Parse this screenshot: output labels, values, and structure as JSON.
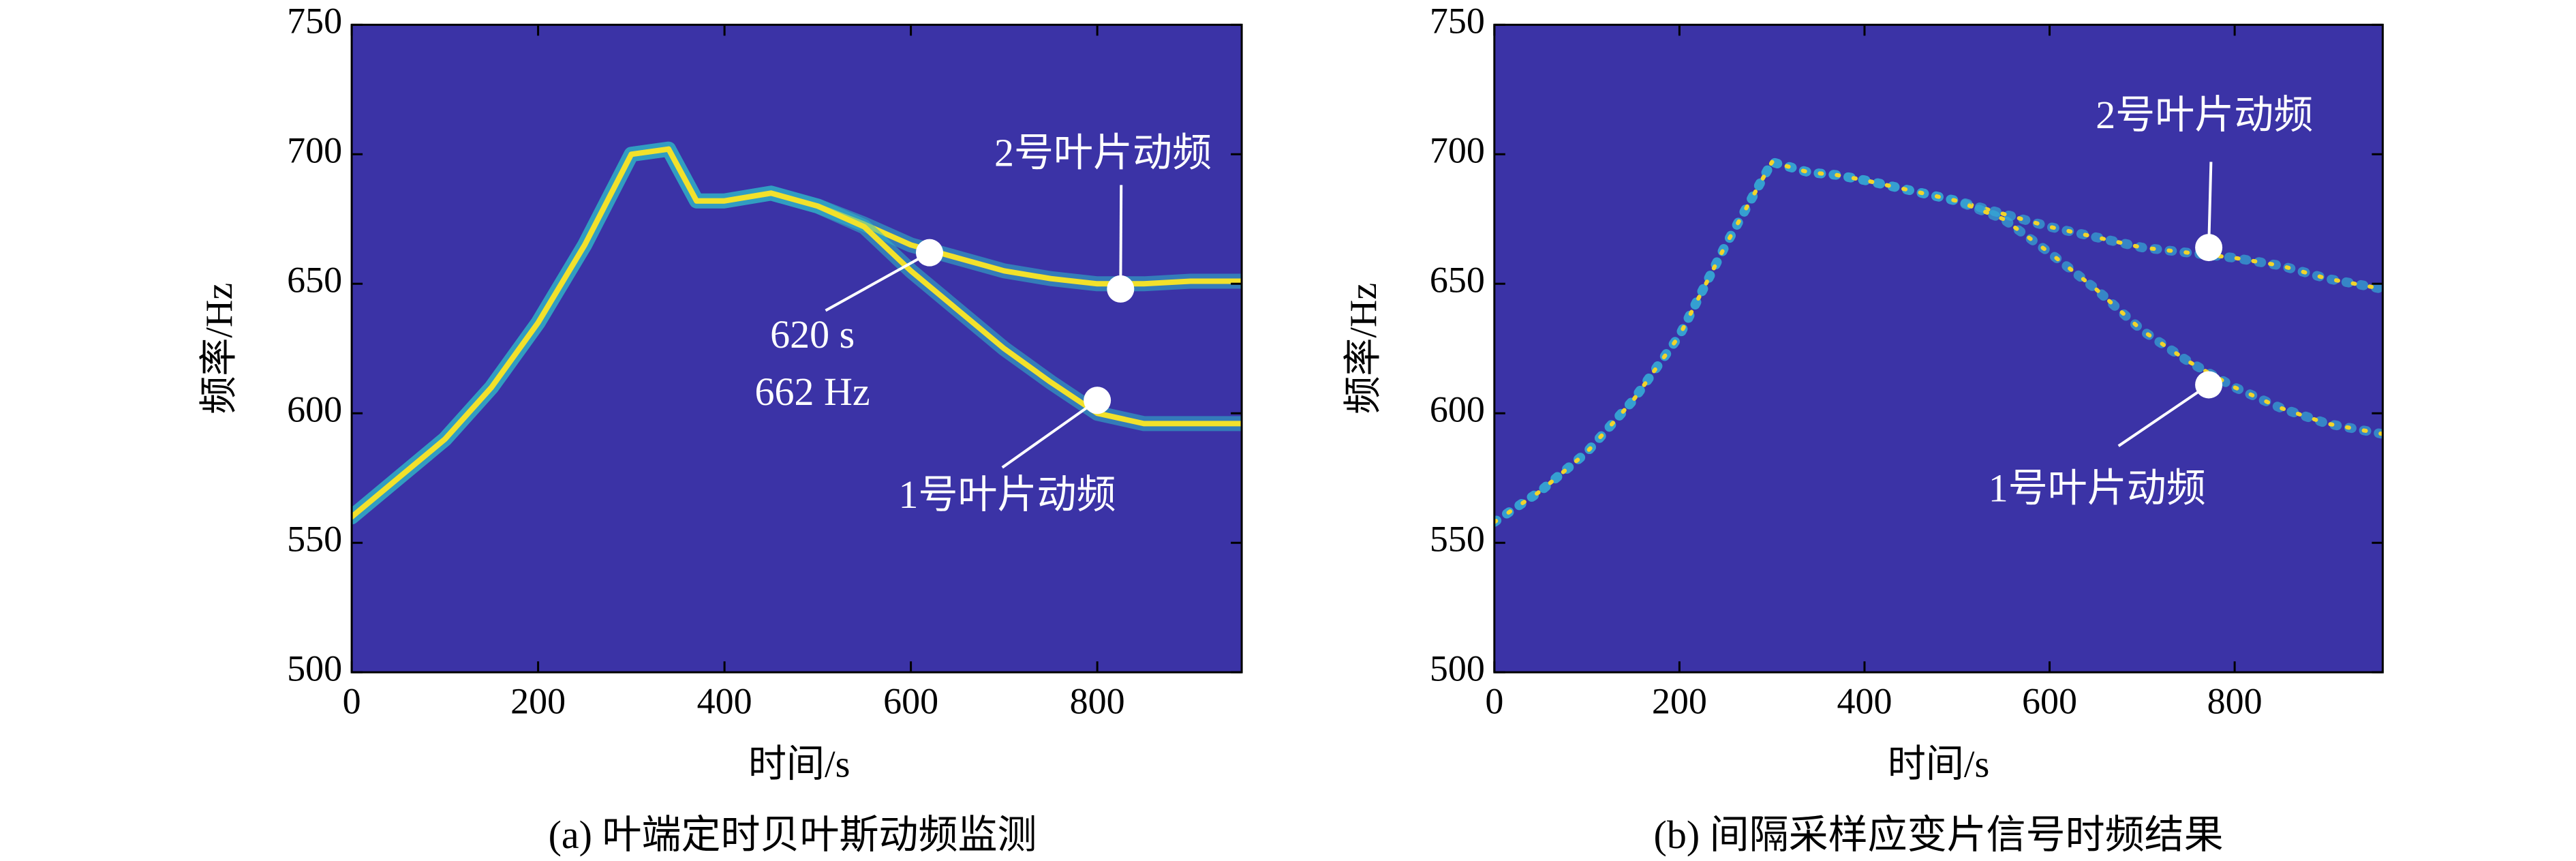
{
  "chart_data": [
    {
      "type": "spectrogram",
      "caption": "(a) 叶端定时贝叶斯动频监测",
      "xlabel": "时间/s",
      "ylabel": "频率/Hz",
      "xlim": [
        0,
        955
      ],
      "ylim": [
        500,
        750
      ],
      "xticks": [
        0,
        200,
        400,
        600,
        800
      ],
      "yticks": [
        500,
        550,
        600,
        650,
        700,
        750
      ],
      "background": "#3b33a6",
      "style": "line",
      "x": [
        0,
        50,
        100,
        150,
        200,
        250,
        300,
        340,
        370,
        400,
        450,
        500,
        550,
        600,
        650,
        700,
        750,
        800,
        850,
        900,
        955
      ],
      "series": [
        {
          "name": "2号叶片动频",
          "color": "#f2e12b",
          "values": [
            560,
            575,
            590,
            610,
            635,
            665,
            700,
            702,
            682,
            682,
            685,
            680,
            673,
            665,
            660,
            655,
            652,
            650,
            650,
            651,
            651
          ]
        },
        {
          "name": "1号叶片动频",
          "color": "#f2e12b",
          "values": [
            560,
            575,
            590,
            610,
            635,
            665,
            700,
            702,
            682,
            682,
            685,
            680,
            672,
            655,
            640,
            625,
            612,
            600,
            596,
            596,
            596
          ]
        }
      ],
      "annotations": [
        {
          "text": [
            "2号叶片动频"
          ],
          "x": 825,
          "y": 648
        },
        {
          "text": [
            "1号叶片动频"
          ],
          "x": 800,
          "y": 605
        },
        {
          "text": [
            "620 s",
            "662 Hz"
          ],
          "x": 620,
          "y": 662
        }
      ]
    },
    {
      "type": "spectrogram",
      "caption": "(b) 间隔采样应变片信号时频结果",
      "xlabel": "时间/s",
      "ylabel": "频率/Hz",
      "xlim": [
        0,
        960
      ],
      "ylim": [
        500,
        750
      ],
      "xticks": [
        0,
        200,
        400,
        600,
        800
      ],
      "yticks": [
        500,
        550,
        600,
        650,
        700,
        750
      ],
      "background": "#3b33a6",
      "style": "scatter",
      "x": [
        0,
        50,
        100,
        150,
        200,
        250,
        300,
        340,
        370,
        400,
        450,
        500,
        550,
        600,
        650,
        700,
        750,
        800,
        850,
        900,
        960
      ],
      "series": [
        {
          "name": "2号叶片动频",
          "color": "#f2d42b",
          "values": [
            558,
            570,
            585,
            605,
            630,
            665,
            697,
            693,
            692,
            690,
            686,
            682,
            677,
            672,
            668,
            664,
            662,
            660,
            657,
            652,
            648
          ]
        },
        {
          "name": "1号叶片动频",
          "color": "#f2d42b",
          "values": [
            558,
            570,
            585,
            605,
            630,
            665,
            697,
            693,
            692,
            690,
            686,
            682,
            675,
            662,
            648,
            632,
            620,
            610,
            602,
            596,
            592
          ]
        }
      ],
      "annotations": [
        {
          "text": [
            "2号叶片动频"
          ],
          "x": 772,
          "y": 664
        },
        {
          "text": [
            "1号叶片动频"
          ],
          "x": 772,
          "y": 611
        }
      ]
    }
  ]
}
